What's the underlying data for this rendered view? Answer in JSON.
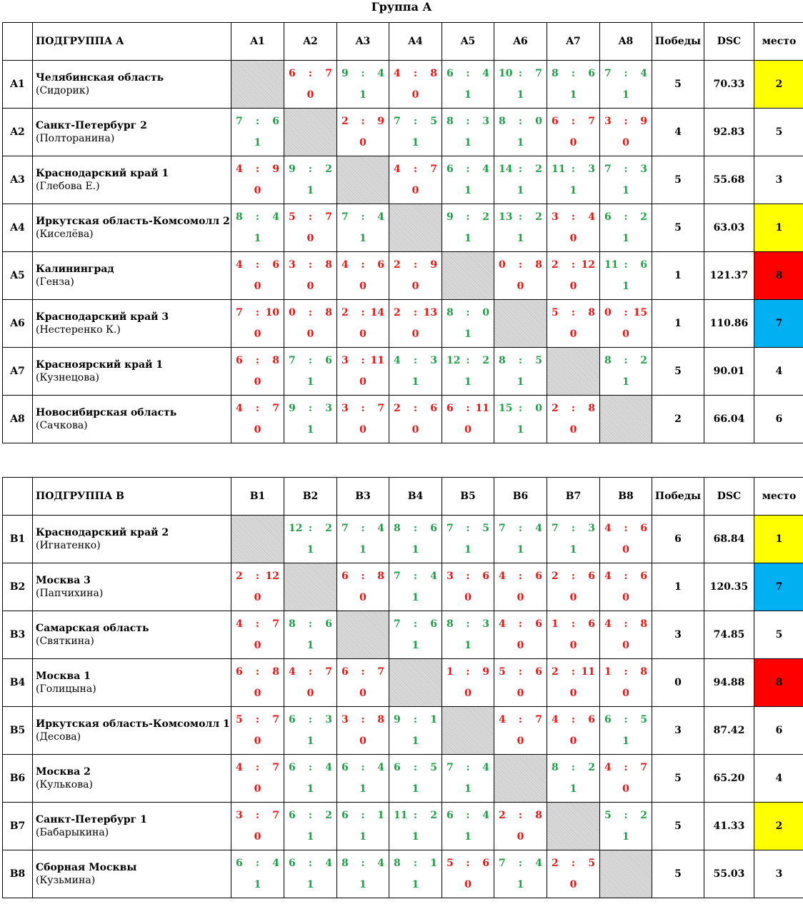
{
  "title": "Группа А",
  "groups": [
    {
      "subgroup": "ПОДГРУППА А",
      "cols": [
        "A1",
        "A2",
        "A3",
        "A4",
        "A5",
        "A6",
        "A7",
        "A8"
      ],
      "wins_label": "Победы",
      "dsc_label": "DSC",
      "place_label": "место",
      "rows": [
        {
          "code": "A1",
          "team": "Челябинская область",
          "coach": "(Сидорик)",
          "wins": "5",
          "dsc": "70.33",
          "place": "2",
          "place_color": "#ffff00",
          "results": [
            null,
            {
              "a": "6",
              "b": "7",
              "p": "0"
            },
            {
              "a": "9",
              "b": "4",
              "p": "1"
            },
            {
              "a": "4",
              "b": "8",
              "p": "0"
            },
            {
              "a": "6",
              "b": "4",
              "p": "1"
            },
            {
              "a": "10",
              "b": "7",
              "p": "1"
            },
            {
              "a": "8",
              "b": "6",
              "p": "1"
            },
            {
              "a": "7",
              "b": "4",
              "p": "1"
            }
          ]
        },
        {
          "code": "A2",
          "team": "Санкт-Петербург 2",
          "coach": "(Полторанина)",
          "wins": "4",
          "dsc": "92.83",
          "place": "5",
          "place_color": "",
          "results": [
            {
              "a": "7",
              "b": "6",
              "p": "1"
            },
            null,
            {
              "a": "2",
              "b": "9",
              "p": "0"
            },
            {
              "a": "7",
              "b": "5",
              "p": "1"
            },
            {
              "a": "8",
              "b": "3",
              "p": "1"
            },
            {
              "a": "8",
              "b": "0",
              "p": "1"
            },
            {
              "a": "6",
              "b": "7",
              "p": "0"
            },
            {
              "a": "3",
              "b": "9",
              "p": "0"
            }
          ]
        },
        {
          "code": "A3",
          "team": "Краснодарский край 1",
          "coach": "(Глебова Е.)",
          "wins": "5",
          "dsc": "55.68",
          "place": "3",
          "place_color": "",
          "results": [
            {
              "a": "4",
              "b": "9",
              "p": "0"
            },
            {
              "a": "9",
              "b": "2",
              "p": "1"
            },
            null,
            {
              "a": "4",
              "b": "7",
              "p": "0"
            },
            {
              "a": "6",
              "b": "4",
              "p": "1"
            },
            {
              "a": "14",
              "b": "2",
              "p": "1"
            },
            {
              "a": "11",
              "b": "3",
              "p": "1"
            },
            {
              "a": "7",
              "b": "3",
              "p": "1"
            }
          ]
        },
        {
          "code": "A4",
          "team": "Иркутская область-Комсомолл 2",
          "coach": "(Киселёва)",
          "wins": "5",
          "dsc": "63.03",
          "place": "1",
          "place_color": "#ffff00",
          "results": [
            {
              "a": "8",
              "b": "4",
              "p": "1"
            },
            {
              "a": "5",
              "b": "7",
              "p": "0"
            },
            {
              "a": "7",
              "b": "4",
              "p": "1"
            },
            null,
            {
              "a": "9",
              "b": "2",
              "p": "1"
            },
            {
              "a": "13",
              "b": "2",
              "p": "1"
            },
            {
              "a": "3",
              "b": "4",
              "p": "0"
            },
            {
              "a": "6",
              "b": "2",
              "p": "1"
            }
          ]
        },
        {
          "code": "A5",
          "team": "Калининград",
          "coach": "(Генза)",
          "wins": "1",
          "dsc": "121.37",
          "place": "8",
          "place_color": "#ff0000",
          "results": [
            {
              "a": "4",
              "b": "6",
              "p": "0"
            },
            {
              "a": "3",
              "b": "8",
              "p": "0"
            },
            {
              "a": "4",
              "b": "6",
              "p": "0"
            },
            {
              "a": "2",
              "b": "9",
              "p": "0"
            },
            null,
            {
              "a": "0",
              "b": "8",
              "p": "0"
            },
            {
              "a": "2",
              "b": "12",
              "p": "0"
            },
            {
              "a": "11",
              "b": "6",
              "p": "1"
            }
          ]
        },
        {
          "code": "A6",
          "team": "Краснодарский край 3",
          "coach": "(Нестеренко К.)",
          "wins": "1",
          "dsc": "110.86",
          "place": "7",
          "place_color": "#00b0f0",
          "results": [
            {
              "a": "7",
              "b": "10",
              "p": "0"
            },
            {
              "a": "0",
              "b": "8",
              "p": "0"
            },
            {
              "a": "2",
              "b": "14",
              "p": "0"
            },
            {
              "a": "2",
              "b": "13",
              "p": "0"
            },
            {
              "a": "8",
              "b": "0",
              "p": "1"
            },
            null,
            {
              "a": "5",
              "b": "8",
              "p": "0"
            },
            {
              "a": "0",
              "b": "15",
              "p": "0"
            }
          ]
        },
        {
          "code": "A7",
          "team": "Красноярский край 1",
          "coach": "(Кузнецова)",
          "wins": "5",
          "dsc": "90.01",
          "place": "4",
          "place_color": "",
          "results": [
            {
              "a": "6",
              "b": "8",
              "p": "0"
            },
            {
              "a": "7",
              "b": "6",
              "p": "1"
            },
            {
              "a": "3",
              "b": "11",
              "p": "0"
            },
            {
              "a": "4",
              "b": "3",
              "p": "1"
            },
            {
              "a": "12",
              "b": "2",
              "p": "1"
            },
            {
              "a": "8",
              "b": "5",
              "p": "1"
            },
            null,
            {
              "a": "8",
              "b": "2",
              "p": "1"
            }
          ]
        },
        {
          "code": "A8",
          "team": "Новосибирская область",
          "coach": "(Сачкова)",
          "wins": "2",
          "dsc": "66.04",
          "place": "6",
          "place_color": "",
          "results": [
            {
              "a": "4",
              "b": "7",
              "p": "0"
            },
            {
              "a": "9",
              "b": "3",
              "p": "1"
            },
            {
              "a": "3",
              "b": "7",
              "p": "0"
            },
            {
              "a": "2",
              "b": "6",
              "p": "0"
            },
            {
              "a": "6",
              "b": "11",
              "p": "0"
            },
            {
              "a": "15",
              "b": "0",
              "p": "1"
            },
            {
              "a": "2",
              "b": "8",
              "p": "0"
            },
            null
          ]
        }
      ]
    },
    {
      "subgroup": "ПОДГРУППА В",
      "cols": [
        "B1",
        "B2",
        "B3",
        "B4",
        "B5",
        "B6",
        "B7",
        "B8"
      ],
      "wins_label": "Победы",
      "dsc_label": "DSC",
      "place_label": "место",
      "rows": [
        {
          "code": "B1",
          "team": "Краснодарский край 2",
          "coach": "(Игнатенко)",
          "wins": "6",
          "dsc": "68.84",
          "place": "1",
          "place_color": "#ffff00",
          "results": [
            null,
            {
              "a": "12",
              "b": "2",
              "p": "1"
            },
            {
              "a": "7",
              "b": "4",
              "p": "1"
            },
            {
              "a": "8",
              "b": "6",
              "p": "1"
            },
            {
              "a": "7",
              "b": "5",
              "p": "1"
            },
            {
              "a": "7",
              "b": "4",
              "p": "1"
            },
            {
              "a": "7",
              "b": "3",
              "p": "1"
            },
            {
              "a": "4",
              "b": "6",
              "p": "0"
            }
          ]
        },
        {
          "code": "B2",
          "team": "Москва 3",
          "coach": "(Папчихина)",
          "wins": "1",
          "dsc": "120.35",
          "place": "7",
          "place_color": "#00b0f0",
          "results": [
            {
              "a": "2",
              "b": "12",
              "p": "0"
            },
            null,
            {
              "a": "6",
              "b": "8",
              "p": "0"
            },
            {
              "a": "7",
              "b": "4",
              "p": "1"
            },
            {
              "a": "3",
              "b": "6",
              "p": "0"
            },
            {
              "a": "4",
              "b": "6",
              "p": "0"
            },
            {
              "a": "2",
              "b": "6",
              "p": "0"
            },
            {
              "a": "4",
              "b": "6",
              "p": "0"
            }
          ]
        },
        {
          "code": "B3",
          "team": "Самарская область",
          "coach": "(Святкина)",
          "wins": "3",
          "dsc": "74.85",
          "place": "5",
          "place_color": "",
          "results": [
            {
              "a": "4",
              "b": "7",
              "p": "0"
            },
            {
              "a": "8",
              "b": "6",
              "p": "1"
            },
            null,
            {
              "a": "7",
              "b": "6",
              "p": "1"
            },
            {
              "a": "8",
              "b": "3",
              "p": "1"
            },
            {
              "a": "4",
              "b": "6",
              "p": "0"
            },
            {
              "a": "1",
              "b": "6",
              "p": "0"
            },
            {
              "a": "4",
              "b": "8",
              "p": "0"
            }
          ]
        },
        {
          "code": "B4",
          "team": "Москва 1",
          "coach": "(Голицына)",
          "wins": "0",
          "dsc": "94.88",
          "place": "8",
          "place_color": "#ff0000",
          "results": [
            {
              "a": "6",
              "b": "8",
              "p": "0"
            },
            {
              "a": "4",
              "b": "7",
              "p": "0"
            },
            {
              "a": "6",
              "b": "7",
              "p": "0"
            },
            null,
            {
              "a": "1",
              "b": "9",
              "p": "0"
            },
            {
              "a": "5",
              "b": "6",
              "p": "0"
            },
            {
              "a": "2",
              "b": "11",
              "p": "0"
            },
            {
              "a": "1",
              "b": "8",
              "p": "0"
            }
          ]
        },
        {
          "code": "B5",
          "team": "Иркутская область-Комсомолл 1",
          "coach": "(Десова)",
          "wins": "3",
          "dsc": "87.42",
          "place": "6",
          "place_color": "",
          "results": [
            {
              "a": "5",
              "b": "7",
              "p": "0"
            },
            {
              "a": "6",
              "b": "3",
              "p": "1"
            },
            {
              "a": "3",
              "b": "8",
              "p": "0"
            },
            {
              "a": "9",
              "b": "1",
              "p": "1"
            },
            null,
            {
              "a": "4",
              "b": "7",
              "p": "0"
            },
            {
              "a": "4",
              "b": "6",
              "p": "0"
            },
            {
              "a": "6",
              "b": "5",
              "p": "1"
            }
          ]
        },
        {
          "code": "B6",
          "team": "Москва 2",
          "coach": "(Кулькова)",
          "wins": "5",
          "dsc": "65.20",
          "place": "4",
          "place_color": "",
          "results": [
            {
              "a": "4",
              "b": "7",
              "p": "0"
            },
            {
              "a": "6",
              "b": "4",
              "p": "1"
            },
            {
              "a": "6",
              "b": "4",
              "p": "1"
            },
            {
              "a": "6",
              "b": "5",
              "p": "1"
            },
            {
              "a": "7",
              "b": "4",
              "p": "1"
            },
            null,
            {
              "a": "8",
              "b": "2",
              "p": "1"
            },
            {
              "a": "4",
              "b": "7",
              "p": "0"
            }
          ]
        },
        {
          "code": "B7",
          "team": "Санкт-Петербург 1",
          "coach": "(Бабарыкина)",
          "wins": "5",
          "dsc": "41.33",
          "place": "2",
          "place_color": "#ffff00",
          "results": [
            {
              "a": "3",
              "b": "7",
              "p": "0"
            },
            {
              "a": "6",
              "b": "2",
              "p": "1"
            },
            {
              "a": "6",
              "b": "1",
              "p": "1"
            },
            {
              "a": "11",
              "b": "2",
              "p": "1"
            },
            {
              "a": "6",
              "b": "4",
              "p": "1"
            },
            {
              "a": "2",
              "b": "8",
              "p": "0"
            },
            null,
            {
              "a": "5",
              "b": "2",
              "p": "1"
            }
          ]
        },
        {
          "code": "B8",
          "team": "Сборная Москвы",
          "coach": "(Кузьмина)",
          "wins": "5",
          "dsc": "55.03",
          "place": "3",
          "place_color": "",
          "results": [
            {
              "a": "6",
              "b": "4",
              "p": "1"
            },
            {
              "a": "6",
              "b": "4",
              "p": "1"
            },
            {
              "a": "8",
              "b": "4",
              "p": "1"
            },
            {
              "a": "8",
              "b": "1",
              "p": "1"
            },
            {
              "a": "5",
              "b": "6",
              "p": "0"
            },
            {
              "a": "7",
              "b": "4",
              "p": "1"
            },
            {
              "a": "2",
              "b": "5",
              "p": "0"
            },
            null
          ]
        }
      ]
    }
  ]
}
